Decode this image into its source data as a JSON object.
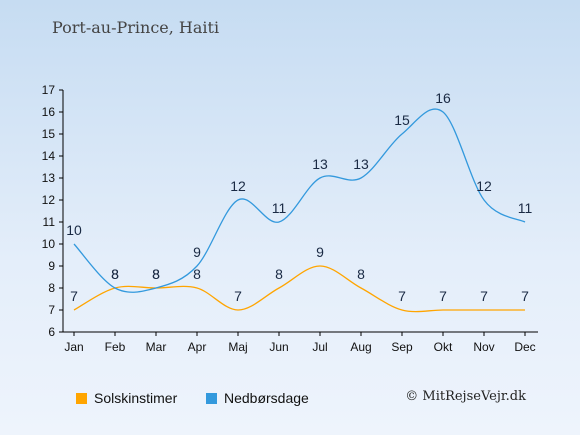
{
  "header": {
    "title": "Port-au-Prince, Haiti"
  },
  "chart_data": {
    "type": "line",
    "categories": [
      "Jan",
      "Feb",
      "Mar",
      "Apr",
      "Maj",
      "Jun",
      "Jul",
      "Aug",
      "Sep",
      "Okt",
      "Nov",
      "Dec"
    ],
    "y_ticks": [
      6,
      7,
      8,
      9,
      10,
      11,
      12,
      13,
      14,
      15,
      16,
      17
    ],
    "ylim": [
      6,
      17
    ],
    "grid": false,
    "legend_position": "bottom",
    "series": [
      {
        "name": "Solskinstimer",
        "color": "#ffa500",
        "values": [
          7,
          8,
          8,
          8,
          7,
          8,
          9,
          8,
          7,
          7,
          7,
          7
        ]
      },
      {
        "name": "Nedbørsdage",
        "color": "#3399dd",
        "values": [
          10,
          8,
          8,
          9,
          12,
          11,
          13,
          13,
          15,
          16,
          12,
          11
        ]
      }
    ]
  },
  "footer": {
    "copyright": "© MitRejseVejr.dk"
  }
}
